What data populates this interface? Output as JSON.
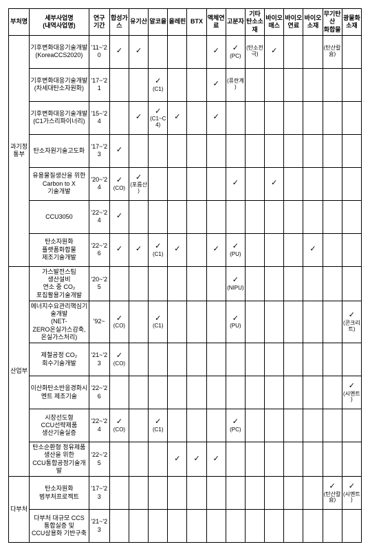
{
  "headers": {
    "dept": "부처명",
    "project": "세부사업명\n(내역사업명)",
    "period": "연구\n기간",
    "cols": [
      "합성가스",
      "유기산",
      "알코올",
      "올레핀",
      "BTX",
      "액체연료",
      "고분자",
      "기타\n탄소소재",
      "바이오\n매스",
      "바이오\n연료",
      "바이오\n소재",
      "무기탄산\n화합물",
      "광물화\n소재"
    ]
  },
  "groups": [
    {
      "dept": "과기정통부",
      "rows": [
        {
          "project": "기후변화대응기술개발\n(KoreaCCS2020)",
          "period": "'11~'20",
          "cells": [
            "✓",
            "✓",
            "",
            "",
            "",
            "✓",
            "✓\n(PC)",
            "(탄소전극)",
            "✓",
            "",
            "",
            "(탄산칼슘)",
            ""
          ]
        },
        {
          "project": "기후변화대응기술개발\n(차세대탄소자원화)",
          "period": "'17~'21",
          "cells": [
            "",
            "",
            "✓\n(C1)",
            "",
            "",
            "✓",
            "(퓨란계)",
            "",
            "",
            "",
            "",
            "",
            ""
          ]
        },
        {
          "project": "기후변화대응기술개발\n(C1가스리파이너리)",
          "period": "'15~'24",
          "cells": [
            "",
            "✓",
            "✓\n(C1~C4)",
            "✓",
            "",
            "✓",
            "",
            "",
            "",
            "",
            "",
            "",
            ""
          ]
        },
        {
          "project": "탄소자원기술고도화",
          "period": "'17~'23",
          "cells": [
            "✓",
            "",
            "",
            "",
            "",
            "",
            "",
            "",
            "",
            "",
            "",
            "",
            ""
          ]
        },
        {
          "project": "유용물질생산을 위한\nCarbon to X 기술개발",
          "period": "'20~'24",
          "cells": [
            "✓\n(CO)",
            "✓\n(포름산)",
            "",
            "",
            "",
            "",
            "✓",
            "",
            "✓",
            "",
            "",
            "",
            ""
          ]
        },
        {
          "project": "CCU3050",
          "period": "'22~'24",
          "cells": [
            "✓",
            "",
            "",
            "",
            "",
            "",
            "",
            "",
            "",
            "",
            "",
            "",
            ""
          ]
        },
        {
          "project": "탄소자원화\n플랫폼화합물\n제조기술개발",
          "period": "'22~'26",
          "cells": [
            "✓",
            "✓",
            "✓\n(C1)",
            "✓",
            "",
            "✓",
            "✓\n(PU)",
            "",
            "",
            "",
            "✓",
            "",
            ""
          ]
        }
      ]
    },
    {
      "dept": "산업부",
      "rows": [
        {
          "project": "가스발전스팀 생산설비\n연소 중 CO₂\n포집활용기술개발",
          "period": "'20~'25",
          "cells": [
            "",
            "",
            "",
            "",
            "",
            "",
            "✓\n(NIPU)",
            "",
            "",
            "",
            "",
            "",
            ""
          ]
        },
        {
          "project": "에너지수요관리핵심기술개발\n(NET-ZERO온실가스감축, 온실가스처리)",
          "period": "'92~",
          "cells": [
            "✓\n(CO)",
            "",
            "✓\n(C1)",
            "",
            "",
            "",
            "✓\n(PU)",
            "",
            "",
            "",
            "",
            "",
            "✓\n(콘크리트)"
          ]
        },
        {
          "project": "제철공정 CO₂\n회수기술개발",
          "period": "'21~'23",
          "cells": [
            "✓\n(CO)",
            "",
            "",
            "",
            "",
            "",
            "",
            "",
            "",
            "",
            "",
            "",
            ""
          ]
        },
        {
          "project": "이산화탄소반응경화시\n멘트 제조기술",
          "period": "'22~'26",
          "cells": [
            "",
            "",
            "",
            "",
            "",
            "",
            "",
            "",
            "",
            "",
            "",
            "",
            "✓\n(시멘트)"
          ]
        },
        {
          "project": "시장선도형\nCCU선략제품\n생산기술실증",
          "period": "'22~'24",
          "cells": [
            "✓\n(CO)",
            "",
            "✓\n(C1)",
            "",
            "",
            "",
            "✓\n(PC)",
            "",
            "",
            "",
            "",
            "",
            ""
          ]
        },
        {
          "project": "탄소순환형 정유제품\n생산을 위한\nCCU통합공정기술개발",
          "period": "'22~'25",
          "cells": [
            "",
            "",
            "",
            "✓",
            "✓",
            "✓",
            "",
            "",
            "",
            "",
            "",
            "",
            ""
          ]
        }
      ]
    },
    {
      "dept": "다부처",
      "rows": [
        {
          "project": "탄소자원화\n범부처프로젝트",
          "period": "'17~'23",
          "cells": [
            "",
            "",
            "",
            "",
            "",
            "",
            "",
            "",
            "",
            "",
            "",
            "✓\n(탄산칼슘)",
            "✓\n(시멘트)"
          ]
        },
        {
          "project": "다부처 대규모 CCS\n통합실증 및\nCCU상용화 기반구축",
          "period": "'21~'23",
          "cells": [
            "",
            "",
            "",
            "",
            "",
            "",
            "",
            "",
            "",
            "",
            "",
            "",
            ""
          ]
        }
      ]
    }
  ]
}
